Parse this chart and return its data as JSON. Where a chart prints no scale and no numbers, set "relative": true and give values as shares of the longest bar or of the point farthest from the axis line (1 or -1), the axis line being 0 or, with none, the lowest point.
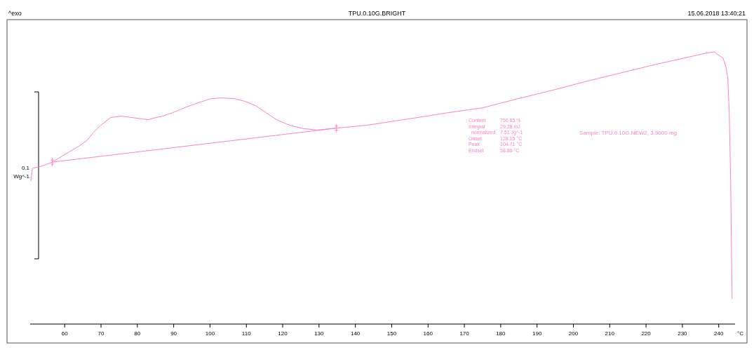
{
  "chart_data": {
    "type": "line",
    "title": "TPU.0.10G.BRIGHT",
    "subtitle": "15.06.2018 13:40:21",
    "xlabel": "°C",
    "ylabel": "Wg^-1",
    "relative": true,
    "xlim": [
      50.5,
      244.5
    ],
    "xticks": [
      60,
      70,
      80,
      90,
      100,
      110,
      120,
      130,
      140,
      150,
      160,
      170,
      180,
      190,
      200,
      210,
      220,
      230,
      240
    ],
    "annotations": [
      "^exo",
      "0.1",
      "Content",
      "750.65 %",
      "Integral",
      "29.28 mJ",
      "  normalized",
      "7.51 Jg^-1",
      "Onset",
      "128.15 °C",
      "Peak",
      "104.71 °C",
      "Endset",
      "58.86 °C",
      "Sample: TPU.0.10G.NEW2, 3.9000 mg"
    ],
    "grid": false,
    "marker": "none",
    "line_style": "solid",
    "series": [
      {
        "color": "#ff80c8",
        "x": [
          50.7,
          51.1,
          53.7,
          56.6,
          59.4,
          61.3,
          64.2,
          66.3,
          68.0,
          69.9,
          72.7,
          75.6,
          78.4,
          81.3,
          83.1,
          84.5,
          86.9,
          89.8,
          93.6,
          97.4,
          100.2,
          103.1,
          106.9,
          109.7,
          112.6,
          115.4,
          118.3,
          122.0,
          125.8,
          129.6,
          134.8,
          142.9,
          156.2,
          165.7,
          175.2,
          184.7,
          194.2,
          203.6,
          213.1,
          222.6,
          232.1,
          237.0,
          238.7,
          241.2,
          242.0,
          242.5,
          242.9,
          243.3,
          243.5,
          243.7
        ],
        "values": [
          0.525,
          0.572,
          0.58,
          0.595,
          0.618,
          0.633,
          0.656,
          0.677,
          0.705,
          0.73,
          0.759,
          0.764,
          0.759,
          0.754,
          0.751,
          0.757,
          0.764,
          0.777,
          0.798,
          0.816,
          0.828,
          0.831,
          0.828,
          0.818,
          0.802,
          0.777,
          0.751,
          0.73,
          0.718,
          0.713,
          0.72,
          0.73,
          0.757,
          0.777,
          0.795,
          0.828,
          0.859,
          0.892,
          0.923,
          0.954,
          0.982,
          0.997,
          1,
          0.977,
          0.944,
          0.905,
          0.777,
          0.521,
          0.29,
          0.092
        ]
      },
      {
        "color": "#ff80c8",
        "x": [
          56.6,
          134.8
        ],
        "values": [
          0.595,
          0.72
        ]
      }
    ]
  }
}
